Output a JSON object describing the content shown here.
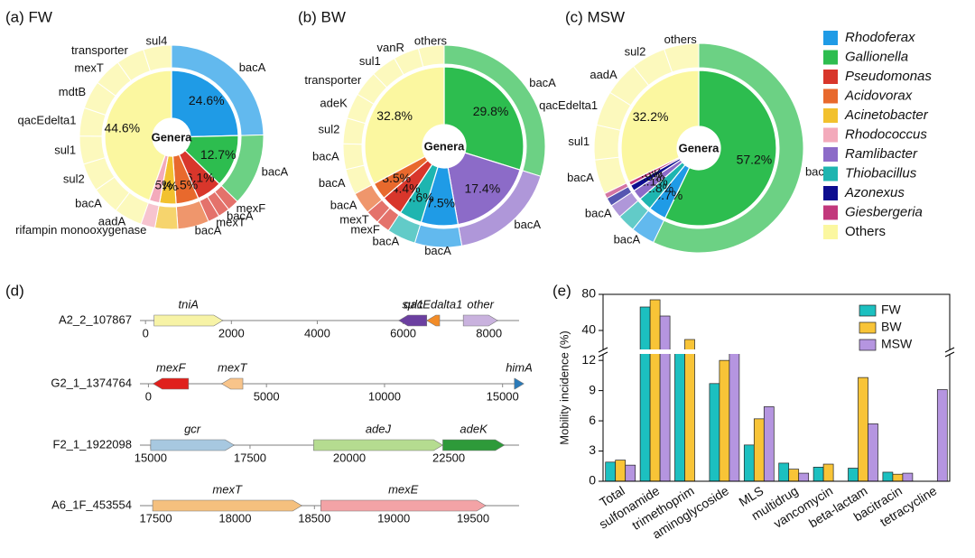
{
  "legend": {
    "items": [
      {
        "name": "Rhodoferax",
        "color": "#1f9be6",
        "italic": true
      },
      {
        "name": "Gallionella",
        "color": "#2dbd4f",
        "italic": true
      },
      {
        "name": "Pseudomonas",
        "color": "#d8362b",
        "italic": true
      },
      {
        "name": "Acidovorax",
        "color": "#e8692d",
        "italic": true
      },
      {
        "name": "Acinetobacter",
        "color": "#f2c12e",
        "italic": true
      },
      {
        "name": "Rhodococcus",
        "color": "#f3aabb",
        "italic": true
      },
      {
        "name": "Ramlibacter",
        "color": "#8c6bc8",
        "italic": true
      },
      {
        "name": "Thiobacillus",
        "color": "#1eb5b0",
        "italic": true
      },
      {
        "name": "Azonexus",
        "color": "#0d0d8f",
        "italic": true
      },
      {
        "name": "Giesbergeria",
        "color": "#c2387c",
        "italic": true
      },
      {
        "name": "Others",
        "color": "#fbf7a0",
        "italic": false
      }
    ]
  },
  "chart_data": [
    {
      "type": "donut",
      "title": "(a) FW",
      "center_label": "Genera",
      "categories": [
        "Rhodoferax",
        "Gallionella",
        "Pseudomonas",
        "Acidovorax",
        "Acinetobacter",
        "Rhodococcus",
        "Others"
      ],
      "values": [
        24.6,
        12.7,
        6.1,
        5.5,
        4,
        2.5,
        44.6
      ],
      "value_labels": [
        "24.6%",
        "12.7%",
        "6.1%",
        "5.5%",
        "4%",
        "2.5%",
        "44.6%"
      ],
      "genes": [
        [
          "bacA"
        ],
        [
          "bacA"
        ],
        [
          "mexF",
          "bacA",
          "mexT"
        ],
        [
          "bacA"
        ],
        [],
        [
          "rifampin monooxygenase"
        ],
        [
          "aadA",
          "bacA",
          "sul2",
          "sul1",
          "qacEdelta1",
          "mdtB",
          "mexT",
          "transporter",
          "sul4"
        ]
      ]
    },
    {
      "type": "donut",
      "title": "(b) BW",
      "center_label": "Genera",
      "categories": [
        "Gallionella",
        "Ramlibacter",
        "Rhodoferax",
        "Thiobacillus",
        "Pseudomonas",
        "Acidovorax",
        "Others"
      ],
      "values": [
        29.8,
        17.4,
        7.5,
        4.6,
        4.4,
        3.5,
        32.8
      ],
      "value_labels": [
        "29.8%",
        "17.4%",
        "7.5%",
        "4.6%",
        "4.4%",
        "3.5%",
        "32.8%"
      ],
      "genes": [
        [
          "bacA"
        ],
        [
          "bacA"
        ],
        [
          "bacA"
        ],
        [
          "bacA"
        ],
        [
          "mexF",
          "mexT"
        ],
        [
          "bacA"
        ],
        [
          "bacA",
          "bacA",
          "sul2",
          "adeK",
          "transporter",
          "sul1",
          "vanR",
          "others"
        ]
      ]
    },
    {
      "type": "donut",
      "title": "(c) MSW",
      "center_label": "Genera",
      "categories": [
        "Gallionella",
        "Rhodoferax",
        "Thiobacillus",
        "Ramlibacter",
        "Azonexus",
        "Giesbergeria",
        "Others"
      ],
      "values": [
        57.2,
        3.7,
        2.8,
        2.1,
        1.3,
        0.8,
        32.2
      ],
      "value_labels": [
        "57.2%",
        "3.7%",
        "2.8%",
        "2.1%",
        "1.3%",
        "0.8%",
        "32.2%"
      ],
      "genes": [
        [
          "bacA"
        ],
        [
          "bacA"
        ],
        [],
        [
          "bacA"
        ],
        [],
        [],
        [
          "bacA",
          "sul1",
          "qacEdelta1",
          "aadA",
          "sul2",
          "others"
        ]
      ]
    },
    {
      "type": "gene_map",
      "title": "(d)",
      "tracks": [
        {
          "name": "A2_2_107867",
          "xlim": [
            -130,
            8700
          ],
          "xticks": [
            0,
            2000,
            4000,
            6000,
            8000
          ],
          "genes": [
            {
              "label": "tniA",
              "start": 200,
              "end": 1800,
              "strand": "+",
              "color": "#f7f3a6"
            },
            {
              "label": "sul1",
              "start": 5900,
              "end": 6550,
              "strand": "-",
              "color": "#6b3fa0"
            },
            {
              "label": "qacEdalta1",
              "start": 6550,
              "end": 6850,
              "strand": "-",
              "color": "#f28c28"
            },
            {
              "label": "other",
              "start": 7400,
              "end": 8200,
              "strand": "+",
              "color": "#c9b2de"
            }
          ]
        },
        {
          "name": "G2_1_1374764",
          "xlim": [
            -360,
            15700
          ],
          "xticks": [
            0,
            5000,
            10000,
            15000
          ],
          "genes": [
            {
              "label": "mexF",
              "start": 200,
              "end": 1700,
              "strand": "-",
              "color": "#e0201c"
            },
            {
              "label": "mexT",
              "start": 3100,
              "end": 4000,
              "strand": "-",
              "color": "#f8c48a"
            },
            {
              "label": "himA",
              "start": 15500,
              "end": 15900,
              "strand": "+",
              "color": "#2a7ab8"
            }
          ]
        },
        {
          "name": "F2_1_1922098",
          "xlim": [
            14730,
            24270
          ],
          "xticks": [
            15000,
            17500,
            20000,
            22500
          ],
          "genes": [
            {
              "label": "gcr",
              "start": 15000,
              "end": 17100,
              "strand": "+",
              "color": "#a7c8e0"
            },
            {
              "label": "adeJ",
              "start": 19100,
              "end": 22350,
              "strand": "+",
              "color": "#b5dc90"
            },
            {
              "label": "adeK",
              "start": 22350,
              "end": 23900,
              "strand": "+",
              "color": "#2e9a3a"
            }
          ]
        },
        {
          "name": "A6_1F_453554",
          "xlim": [
            17400,
            19790
          ],
          "xticks": [
            17500,
            18000,
            18500,
            19000,
            19500
          ],
          "genes": [
            {
              "label": "mexT",
              "start": 17480,
              "end": 18420,
              "strand": "+",
              "color": "#f5c07e"
            },
            {
              "label": "mexE",
              "start": 18540,
              "end": 19580,
              "strand": "+",
              "color": "#f3a3a6"
            }
          ]
        }
      ]
    },
    {
      "type": "bar",
      "title": "(e)",
      "y_label": "Mobility incidence (%)",
      "categories": [
        "Total",
        "sulfonamide",
        "trimethoprim",
        "aminoglycoside",
        "MLS",
        "multidrug",
        "vancomycin",
        "beta-lactam",
        "bacitracin",
        "tetracycline"
      ],
      "series": [
        {
          "name": "FW",
          "color": "#1cc0c0",
          "values": [
            1.9,
            66,
            18,
            9.7,
            3.6,
            1.8,
            1.4,
            1.3,
            0.9,
            null
          ]
        },
        {
          "name": "BW",
          "color": "#f8c437",
          "values": [
            2.1,
            74,
            30,
            12.0,
            6.2,
            1.2,
            1.7,
            10.3,
            0.7,
            null
          ]
        },
        {
          "name": "MSW",
          "color": "#b595e0",
          "values": [
            1.6,
            56,
            null,
            17,
            7.4,
            0.8,
            null,
            5.7,
            0.8,
            9.1
          ]
        }
      ],
      "ylim": [
        0,
        80
      ],
      "ybreak": [
        13,
        16
      ],
      "yticks": [
        0,
        3,
        6,
        9,
        12,
        40,
        80
      ],
      "legend": "upper right"
    }
  ]
}
